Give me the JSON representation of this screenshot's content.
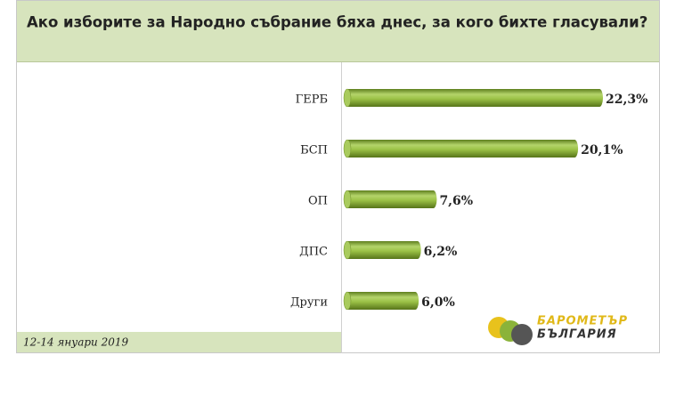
{
  "chart_data": {
    "type": "bar",
    "orientation": "horizontal",
    "title": "Ако изборите за Народно събрание бяха днес, за кого бихте гласували?",
    "categories": [
      "ГЕРБ",
      "БСП",
      "ОП",
      "ДПС",
      "Други"
    ],
    "values": [
      22.3,
      20.1,
      7.6,
      6.2,
      6.0
    ],
    "value_labels": [
      "22,3%",
      "20,1%",
      "7,6%",
      "6,2%",
      "6,0%"
    ],
    "color": "#8db13a",
    "date_note": "12-14 януари 2019",
    "logo": [
      "БАРОМЕТЪР",
      "БЪЛГАРИЯ"
    ]
  }
}
